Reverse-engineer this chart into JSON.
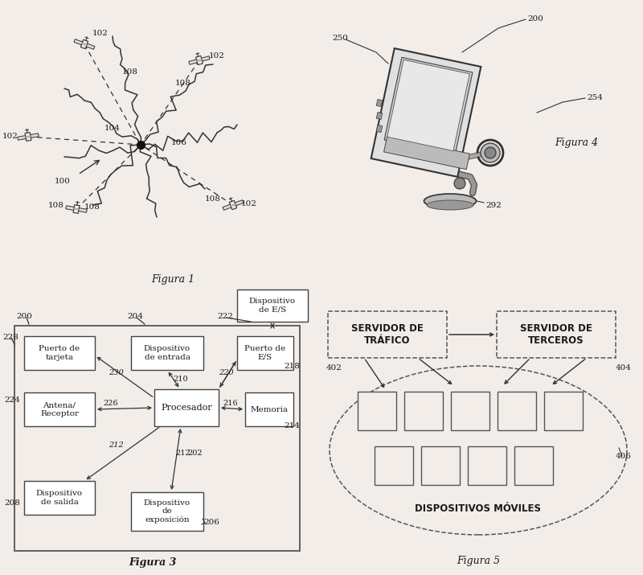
{
  "bg_color": "#f2ede8",
  "text_color": "#1a1a1a",
  "box_edge_color": "#444444",
  "box_fill": "#ffffff",
  "arrow_color": "#333333",
  "fig1_label": "Figura 1",
  "fig3_label": "Figura 3",
  "fig4_label": "Figura 4",
  "fig5_label": "Figura 5"
}
